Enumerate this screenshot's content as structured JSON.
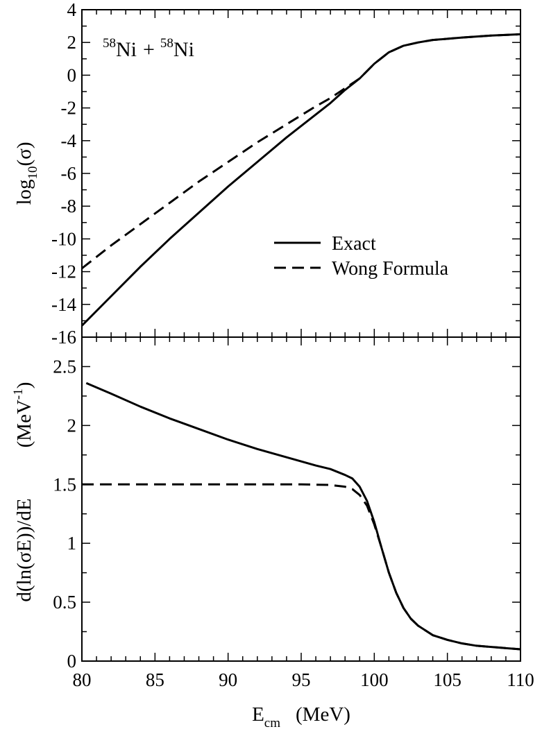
{
  "chart_data": [
    {
      "type": "line",
      "panel": "top",
      "annotation": {
        "mass1": "58",
        "el1": "Ni",
        "plus": "+",
        "mass2": "58",
        "el2": "Ni"
      },
      "ylabel": {
        "base": "log",
        "sub": "10",
        "rest": "(σ)"
      },
      "xlim": [
        80,
        110
      ],
      "ylim": [
        -16,
        4
      ],
      "y_ticks": [
        4,
        2,
        0,
        -2,
        -4,
        -6,
        -8,
        -10,
        -12,
        -14,
        -16
      ],
      "legend": {
        "placement": "center-right"
      },
      "series": [
        {
          "name": "Exact",
          "style": "solid",
          "x": [
            80,
            82,
            84,
            86,
            88,
            90,
            92,
            94,
            96,
            97,
            98,
            99,
            100,
            101,
            102,
            103,
            104,
            106,
            108,
            110
          ],
          "y": [
            -15.3,
            -13.5,
            -11.7,
            -10.0,
            -8.4,
            -6.8,
            -5.3,
            -3.8,
            -2.4,
            -1.7,
            -0.9,
            -0.2,
            0.7,
            1.4,
            1.8,
            2.0,
            2.15,
            2.3,
            2.42,
            2.5
          ]
        },
        {
          "name": "Wong Formula",
          "style": "dashed",
          "x": [
            80,
            82,
            84,
            86,
            88,
            90,
            92,
            94,
            96,
            97,
            98,
            99,
            100,
            101,
            102,
            103,
            104,
            106,
            108,
            110
          ],
          "y": [
            -11.8,
            -10.4,
            -9.1,
            -7.8,
            -6.5,
            -5.3,
            -4.1,
            -3.0,
            -1.9,
            -1.4,
            -0.8,
            -0.2,
            0.7,
            1.4,
            1.8,
            2.0,
            2.15,
            2.3,
            2.42,
            2.5
          ]
        }
      ]
    },
    {
      "type": "line",
      "panel": "bottom",
      "ylabel": {
        "main": "d(ln(σE))/dE",
        "unit": "(MeV",
        "unit_sup": "-1",
        "unit_close": ")"
      },
      "xlabel": {
        "base": "E",
        "sub": "cm",
        "unit": "(MeV)"
      },
      "xlim": [
        80,
        110
      ],
      "ylim": [
        0,
        2.75
      ],
      "x_ticks": [
        80,
        85,
        90,
        95,
        100,
        105,
        110
      ],
      "y_ticks": [
        0,
        0.5,
        1,
        1.5,
        2,
        2.5
      ],
      "series": [
        {
          "name": "Exact",
          "style": "solid",
          "x": [
            80.3,
            82,
            84,
            86,
            88,
            90,
            92,
            94,
            96,
            97,
            98,
            98.5,
            99,
            99.5,
            100,
            100.5,
            101,
            101.5,
            102,
            102.5,
            103,
            104,
            105,
            106,
            107,
            108,
            109,
            110
          ],
          "y": [
            2.36,
            2.27,
            2.16,
            2.06,
            1.97,
            1.88,
            1.8,
            1.73,
            1.66,
            1.63,
            1.58,
            1.55,
            1.48,
            1.36,
            1.18,
            0.96,
            0.75,
            0.58,
            0.45,
            0.36,
            0.3,
            0.22,
            0.18,
            0.15,
            0.13,
            0.12,
            0.11,
            0.1
          ]
        },
        {
          "name": "Wong Formula",
          "style": "dashed",
          "x": [
            80,
            84,
            88,
            92,
            95,
            97,
            98,
            98.5,
            99,
            99.5,
            100,
            100.5,
            101,
            101.5,
            102,
            102.5,
            103,
            104,
            105,
            106,
            107,
            108,
            109,
            110
          ],
          "y": [
            1.5,
            1.5,
            1.5,
            1.5,
            1.5,
            1.495,
            1.48,
            1.46,
            1.41,
            1.32,
            1.16,
            0.96,
            0.75,
            0.58,
            0.45,
            0.36,
            0.3,
            0.22,
            0.18,
            0.15,
            0.13,
            0.12,
            0.11,
            0.1
          ]
        }
      ]
    }
  ]
}
